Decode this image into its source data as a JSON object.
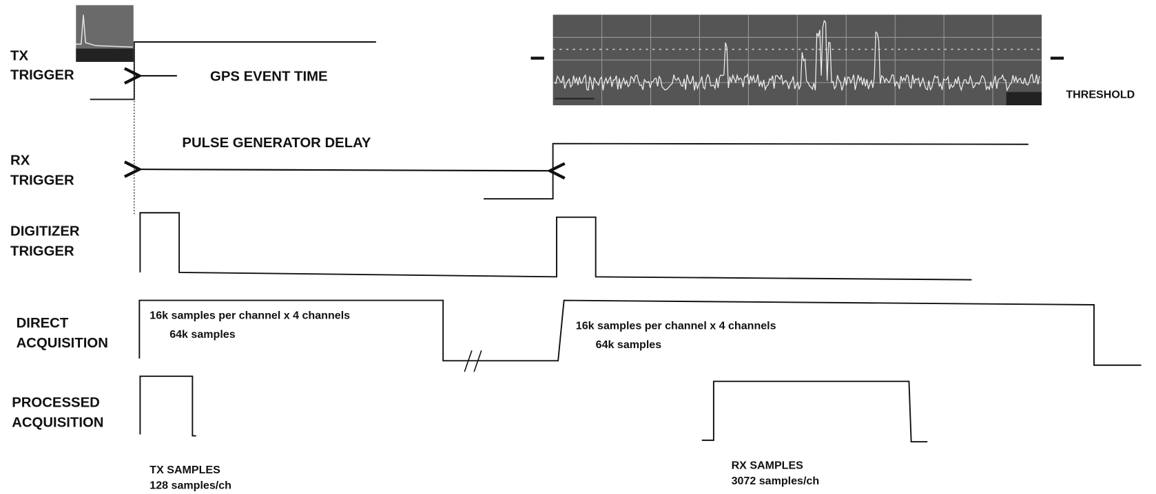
{
  "signals": [
    {
      "label": [
        "TX",
        "TRIGGER"
      ]
    },
    {
      "label": [
        "RX",
        "TRIGGER"
      ]
    },
    {
      "label": [
        "DIGITIZER",
        "TRIGGER"
      ]
    },
    {
      "label": [
        "DIRECT",
        "ACQUISITION"
      ]
    },
    {
      "label": [
        "PROCESSED",
        "ACQUISITION"
      ]
    }
  ],
  "annotations": {
    "gps_event_time": "GPS EVENT TIME",
    "pulse_generator_delay": "PULSE GENERATOR  DELAY",
    "threshold": "THRESHOLD"
  },
  "direct_acquisition_notes": [
    [
      "16k samples per channel x 4 channels",
      "64k samples"
    ],
    [
      "16k samples per channel x 4 channels",
      "64k samples"
    ]
  ],
  "processed_samples": [
    {
      "title": "TX SAMPLES",
      "rate": "128 samples/ch"
    },
    {
      "title": "RX SAMPLES",
      "rate": "3072 samples/ch"
    }
  ]
}
